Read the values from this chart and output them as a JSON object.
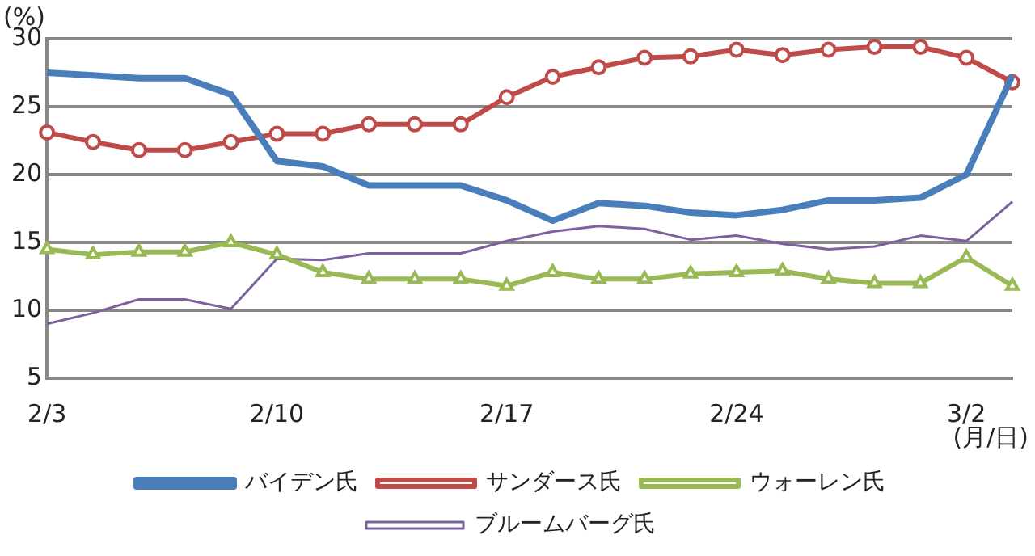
{
  "chart_data": {
    "type": "line",
    "ylabel": "(%)",
    "xlabel": "(月/日)",
    "categories": [
      "2/3",
      null,
      null,
      null,
      null,
      "2/10",
      null,
      null,
      null,
      null,
      "2/17",
      null,
      null,
      null,
      null,
      "2/24",
      null,
      null,
      null,
      null,
      "3/2",
      null
    ],
    "series": [
      {
        "name": "バイデン氏",
        "color": "#4a7ebb",
        "marker": "none",
        "values": [
          27.5,
          27.3,
          27.1,
          27.1,
          25.9,
          21.0,
          20.6,
          19.2,
          19.2,
          19.2,
          18.1,
          16.6,
          17.9,
          17.7,
          17.2,
          17.0,
          17.4,
          18.1,
          18.1,
          18.3,
          20.0,
          27.3
        ]
      },
      {
        "name": "サンダース氏",
        "color": "#be4b48",
        "marker": "circle",
        "values": [
          23.1,
          22.4,
          21.8,
          21.8,
          22.4,
          23.0,
          23.0,
          23.7,
          23.7,
          23.7,
          25.7,
          27.2,
          27.9,
          28.6,
          28.7,
          29.2,
          28.8,
          29.2,
          29.4,
          29.4,
          28.6,
          26.8
        ]
      },
      {
        "name": "ウォーレン氏",
        "color": "#98b954",
        "marker": "triangle",
        "values": [
          14.5,
          14.1,
          14.3,
          14.3,
          15.0,
          14.1,
          12.8,
          12.3,
          12.3,
          12.3,
          11.8,
          12.8,
          12.3,
          12.3,
          12.7,
          12.8,
          12.9,
          12.3,
          12.0,
          12.0,
          13.9,
          11.8
        ]
      },
      {
        "name": "ブルームバーグ氏",
        "color": "#7d60a0",
        "marker": "none",
        "values": [
          9.0,
          9.8,
          10.8,
          10.8,
          10.1,
          13.8,
          13.7,
          14.2,
          14.2,
          14.2,
          15.1,
          15.8,
          16.2,
          16.0,
          15.2,
          15.5,
          14.9,
          14.5,
          14.7,
          15.5,
          15.1,
          18.0
        ]
      }
    ],
    "ylim": [
      5,
      30
    ],
    "yticks": [
      5,
      10,
      15,
      20,
      25,
      30
    ],
    "grid": "y",
    "legend": "bottom"
  }
}
